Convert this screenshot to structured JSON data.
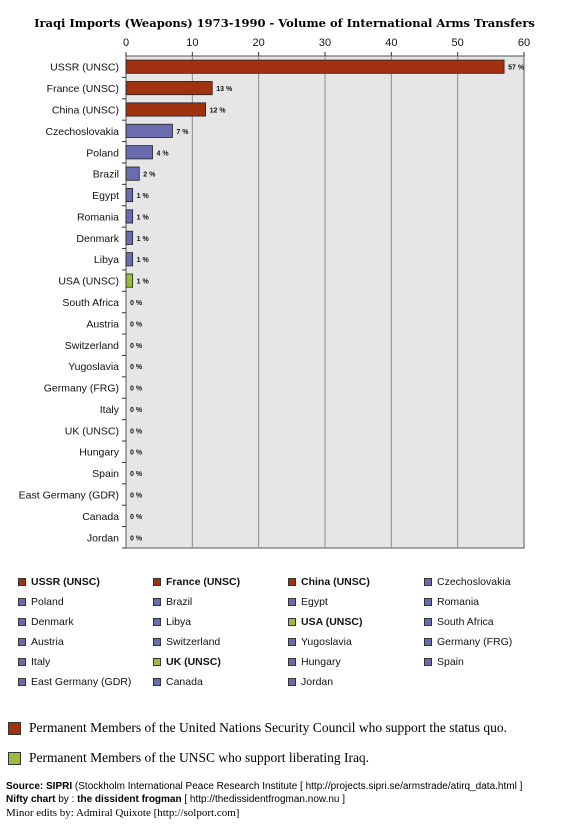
{
  "chart_data": {
    "type": "bar",
    "orientation": "horizontal",
    "title": "Iraqi Imports (Weapons)  1973-1990 - Volume of International Arms Transfers",
    "xlim": [
      0,
      60
    ],
    "xticks": [
      0,
      10,
      20,
      30,
      40,
      50,
      60
    ],
    "grid": true,
    "categories": [
      "USSR (UNSC)",
      "France (UNSC)",
      "China (UNSC)",
      "Czechoslovakia",
      "Poland",
      "Brazil",
      "Egypt",
      "Romania",
      "Denmark",
      "Libya",
      "USA (UNSC)",
      "South Africa",
      "Austria",
      "Switzerland",
      "Yugoslavia",
      "Germany (FRG)",
      "Italy",
      "UK (UNSC)",
      "Hungary",
      "Spain",
      "East Germany (GDR)",
      "Canada",
      "Jordan"
    ],
    "values": [
      57,
      13,
      12,
      7,
      4,
      2,
      1,
      1,
      1,
      1,
      1,
      0,
      0,
      0,
      0,
      0,
      0,
      0,
      0,
      0,
      0,
      0,
      0
    ],
    "value_labels": [
      "57 %",
      "13 %",
      "12 %",
      "7 %",
      "4 %",
      "2 %",
      "1 %",
      "1 %",
      "1 %",
      "1 %",
      "1 %",
      "0 %",
      "0 %",
      "0 %",
      "0 %",
      "0 %",
      "0 %",
      "0 %",
      "0 %",
      "0 %",
      "0 %",
      "0 %",
      "0 %"
    ],
    "bar_groups": [
      "status-quo",
      "status-quo",
      "status-quo",
      "other",
      "other",
      "other",
      "other",
      "other",
      "other",
      "other",
      "liberating",
      "other",
      "other",
      "other",
      "other",
      "other",
      "other",
      "liberating",
      "other",
      "other",
      "other",
      "other",
      "other"
    ],
    "legend_bold": [
      true,
      true,
      true,
      false,
      false,
      false,
      false,
      false,
      false,
      false,
      true,
      false,
      false,
      false,
      false,
      false,
      false,
      true,
      false,
      false,
      false,
      false,
      false
    ],
    "legend_placement": "bottom"
  },
  "colors": {
    "status-quo": "#a0320f",
    "other": "#6b6bb0",
    "liberating": "#9bbb3c",
    "plot_bg": "#e6e6e6",
    "grid": "#8c8c8c"
  },
  "notes": {
    "status_quo": "Permanent Members of the United Nations Security Council who support the status quo.",
    "liberating": "Permanent Members of the UNSC who support liberating Iraq."
  },
  "source": {
    "label": "Source:",
    "name": "SIPRI",
    "text": " (Stockholm International Peace Research Institute [ http://projects.sipri.se/armstrade/atirq_data.html ]",
    "credit_label": "Nifty chart",
    "credit_by": " by : ",
    "credit_name": "the dissident frogman",
    "credit_url": " [ http://thedissidentfrogman.now.nu ]",
    "edits": "Minor edits by:   Admiral Quixote [http://solport.com]"
  }
}
